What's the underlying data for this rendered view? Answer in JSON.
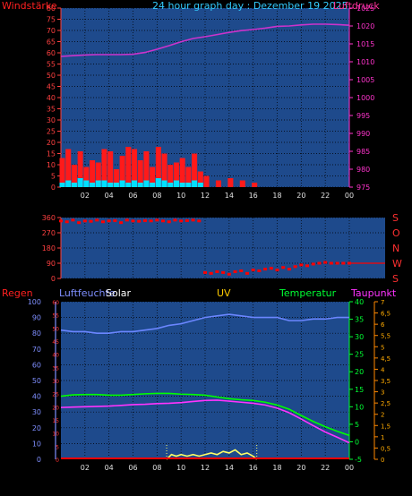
{
  "chart_data": [
    {
      "type": "line",
      "title": "24 hour graph day : Dezember 19 2025",
      "left_axis_label": "Windstärke",
      "right_axis_label": "Luftdruck",
      "x_ticks": [
        "02",
        "04",
        "06",
        "08",
        "10",
        "12",
        "14",
        "16",
        "18",
        "20",
        "22",
        "00"
      ],
      "left_ticks": [
        "0",
        "5",
        "10",
        "15",
        "20",
        "25",
        "30",
        "35",
        "40",
        "45",
        "50",
        "55",
        "60",
        "65",
        "70",
        "75",
        "80"
      ],
      "right_ticks": [
        "975",
        "980",
        "985",
        "990",
        "995",
        "1000",
        "1005",
        "1010",
        "1015",
        "1020",
        "1025"
      ],
      "ylim_left": [
        0,
        80
      ],
      "ylim_right": [
        975,
        1025
      ],
      "grid": true,
      "series": [
        {
          "key": "pressure",
          "axis": "right",
          "color": "#cc33cc",
          "type": "line",
          "x": [
            0,
            1,
            2,
            3,
            4,
            5,
            6,
            7,
            8,
            9,
            10,
            11,
            12,
            13,
            14,
            15,
            16,
            17,
            18,
            19,
            20,
            21,
            22,
            23,
            24
          ],
          "values": [
            1011.5,
            1011.7,
            1011.9,
            1012,
            1012,
            1012,
            1012.1,
            1012.6,
            1013.5,
            1014.5,
            1015.6,
            1016.5,
            1017,
            1017.6,
            1018.2,
            1018.7,
            1019,
            1019.4,
            1019.9,
            1020,
            1020.3,
            1020.5,
            1020.5,
            1020.4,
            1020.2
          ]
        },
        {
          "key": "wind_gust",
          "axis": "left",
          "color": "#ff1a1a",
          "type": "bar",
          "x": [
            0,
            0.5,
            1,
            1.5,
            2,
            2.5,
            3,
            3.5,
            4,
            4.5,
            5,
            5.5,
            6,
            6.5,
            7,
            7.5,
            8,
            8.5,
            9,
            9.5,
            10,
            10.5,
            11,
            11.5,
            12,
            13,
            14,
            15,
            16,
            17,
            18,
            19,
            20,
            21,
            22,
            23,
            24
          ],
          "values": [
            13,
            17,
            10,
            16,
            9,
            12,
            11,
            17,
            16,
            8,
            14,
            18,
            17,
            12,
            16,
            9,
            18,
            15,
            10,
            11,
            13,
            9,
            15,
            7,
            5,
            3,
            4,
            3,
            2,
            0,
            0,
            0,
            0,
            0,
            0,
            0,
            0
          ]
        },
        {
          "key": "wind_avg",
          "axis": "left",
          "color": "#00e0ff",
          "type": "bar",
          "x": [
            0,
            0.5,
            1,
            1.5,
            2,
            2.5,
            3,
            3.5,
            4,
            4.5,
            5,
            5.5,
            6,
            6.5,
            7,
            7.5,
            8,
            8.5,
            9,
            9.5,
            10,
            10.5,
            11,
            11.5,
            12,
            13,
            14,
            15,
            16,
            17,
            18,
            19,
            20,
            21,
            22,
            23,
            24
          ],
          "values": [
            2,
            3,
            2,
            4,
            3,
            2,
            3,
            3,
            2,
            2,
            3,
            2,
            3,
            2,
            3,
            2,
            4,
            3,
            2,
            3,
            2,
            2,
            3,
            2,
            0,
            0,
            0,
            0,
            0,
            0,
            0,
            0,
            0,
            0,
            0,
            0,
            0
          ]
        }
      ]
    },
    {
      "type": "scatter",
      "x_ticks": [],
      "left_ticks": [
        "0",
        "90",
        "180",
        "270",
        "360"
      ],
      "right_ticks": [
        "S",
        "O",
        "N",
        "W",
        "S"
      ],
      "ylim_left": [
        0,
        360
      ],
      "grid": true,
      "series": [
        {
          "key": "wind_dir",
          "color": "#ff0000",
          "x": [
            0,
            0.5,
            1,
            1.5,
            2,
            2.5,
            3,
            3.5,
            4,
            4.5,
            5,
            5.5,
            6,
            6.5,
            7,
            7.5,
            8,
            8.5,
            9,
            9.5,
            10,
            10.5,
            11,
            11.5,
            12,
            12.5,
            13,
            13.5,
            14,
            14.5,
            15,
            15.5,
            16,
            16.5,
            17,
            17.5,
            18,
            18.5,
            19,
            19.5,
            20,
            20.5,
            21,
            21.5,
            22,
            22.5,
            23,
            23.5,
            24
          ],
          "values": [
            340,
            335,
            345,
            330,
            340,
            338,
            345,
            335,
            340,
            342,
            330,
            345,
            340,
            338,
            342,
            340,
            345,
            340,
            335,
            345,
            340,
            342,
            345,
            340,
            35,
            30,
            40,
            35,
            25,
            40,
            45,
            30,
            50,
            45,
            55,
            60,
            50,
            65,
            55,
            70,
            80,
            75,
            85,
            90,
            95,
            90,
            90,
            90,
            90
          ]
        }
      ]
    },
    {
      "type": "line",
      "top_labels": {
        "regen": "Regen",
        "luftfeuchte": "Luftfeuchte",
        "solar": "Solar",
        "uv": "UV",
        "temperatur": "Temperatur",
        "taupunkt": "Taupunkt"
      },
      "x_ticks": [
        "02",
        "04",
        "06",
        "08",
        "10",
        "12",
        "14",
        "16",
        "18",
        "20",
        "22",
        "00"
      ],
      "left_ticks": [
        "0",
        "10",
        "20",
        "30",
        "40",
        "50",
        "60",
        "70",
        "80",
        "90",
        "100"
      ],
      "regen_ticks": [
        "0",
        "5",
        "10",
        "15",
        "20",
        "25",
        "30",
        "35",
        "40",
        "45",
        "50",
        "55",
        "60"
      ],
      "temp_ticks": [
        "-5",
        "0",
        "5",
        "10",
        "15",
        "20",
        "25",
        "30",
        "35",
        "40"
      ],
      "uv_ticks": [
        "0",
        "0,5",
        "1",
        "1,5",
        "2",
        "2,5",
        "3",
        "3,5",
        "4",
        "4,5",
        "5",
        "5,5",
        "6",
        "6,5",
        "7"
      ],
      "ylim_left": [
        0,
        100
      ],
      "ylim_temp": [
        -5,
        40
      ],
      "grid": true,
      "series": [
        {
          "key": "humidity",
          "axis": "left",
          "color": "#6b86ff",
          "x": [
            0,
            1,
            2,
            3,
            4,
            5,
            6,
            7,
            8,
            9,
            10,
            11,
            12,
            13,
            14,
            15,
            16,
            17,
            18,
            19,
            20,
            21,
            22,
            23,
            24
          ],
          "values": [
            82,
            81,
            81,
            80,
            80,
            81,
            81,
            82,
            83,
            85,
            86,
            88,
            90,
            91,
            92,
            91,
            90,
            90,
            90,
            88,
            88,
            89,
            89,
            90,
            90
          ]
        },
        {
          "key": "temperature",
          "axis": "temp",
          "color": "#00ff00",
          "x": [
            0,
            1,
            2,
            3,
            4,
            5,
            6,
            7,
            8,
            9,
            10,
            11,
            12,
            13,
            14,
            15,
            16,
            17,
            18,
            19,
            20,
            21,
            22,
            23,
            24
          ],
          "values": [
            13,
            13.4,
            13.5,
            13.5,
            13.3,
            13.3,
            13.5,
            13.7,
            13.8,
            13.8,
            13.6,
            13.5,
            13.3,
            12.8,
            12.3,
            12.0,
            11.8,
            11.3,
            10.5,
            9.3,
            7.5,
            5.8,
            4.3,
            3.0,
            1.8
          ]
        },
        {
          "key": "dewpoint",
          "axis": "temp",
          "color": "#ff33ff",
          "x": [
            0,
            1,
            2,
            3,
            4,
            5,
            6,
            7,
            8,
            9,
            10,
            11,
            12,
            13,
            14,
            15,
            16,
            17,
            18,
            19,
            20,
            21,
            22,
            23,
            24
          ],
          "values": [
            9.8,
            9.9,
            10,
            10.1,
            10.2,
            10.4,
            10.6,
            10.7,
            10.9,
            11,
            11.2,
            11.5,
            11.8,
            11.9,
            11.6,
            11.3,
            11,
            10.5,
            9.6,
            8.3,
            6.5,
            4.6,
            2.8,
            1.3,
            -0.3
          ]
        },
        {
          "key": "solar",
          "axis": "left",
          "color": "#ffff66",
          "x": [
            8.8,
            9.2,
            9.6,
            10,
            10.5,
            11,
            11.5,
            12,
            12.5,
            13,
            13.5,
            14,
            14.5,
            15,
            15.5,
            16,
            16.3
          ],
          "values": [
            0,
            3,
            2,
            3,
            2,
            3,
            2,
            3,
            4,
            3,
            5,
            4,
            6,
            3,
            4,
            2,
            0
          ]
        },
        {
          "key": "rain",
          "axis": "regen",
          "color": "#ff0000",
          "x": [
            0,
            24
          ],
          "values": [
            0,
            0
          ]
        }
      ]
    }
  ]
}
